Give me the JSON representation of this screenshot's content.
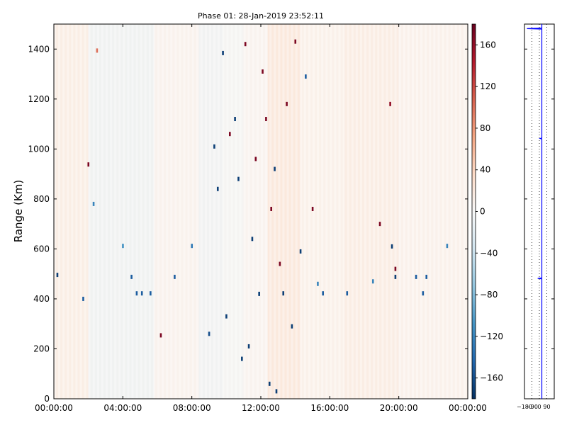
{
  "chart_data": [
    {
      "type": "heatmap",
      "title": "Phase 01: 28-Jan-2019 23:52:11",
      "xlabel": "",
      "ylabel": "Range (Km)",
      "x_range": [
        "00:00:00",
        "00:00:00"
      ],
      "xlim_hours": [
        0,
        24
      ],
      "ylim": [
        0,
        1500
      ],
      "x_ticks": [
        "00:00:00",
        "04:00:00",
        "08:00:00",
        "12:00:00",
        "16:00:00",
        "20:00:00",
        "00:00:00"
      ],
      "y_ticks": [
        "0",
        "200",
        "400",
        "600",
        "800",
        "1000",
        "1200",
        "1400"
      ],
      "colormap": "RdBu_r",
      "background_color": "#fbf3ee",
      "colorbar": {
        "range": [
          -180,
          180
        ],
        "ticks": [
          "−160",
          "−120",
          "−80",
          "−40",
          "0",
          "40",
          "80",
          "120",
          "160"
        ],
        "tick_values": [
          -160,
          -120,
          -80,
          -40,
          0,
          40,
          80,
          120,
          160
        ],
        "colors": [
          "#053061",
          "#2166ac",
          "#4393c3",
          "#92c5de",
          "#d1e5f0",
          "#f7f7f7",
          "#fddbc7",
          "#f4a582",
          "#d6604d",
          "#b2182b",
          "#67001f"
        ]
      },
      "bands": [
        {
          "from_hour": 0.0,
          "to_hour": 2.0,
          "value": 18
        },
        {
          "from_hour": 2.0,
          "to_hour": 5.8,
          "value": -14
        },
        {
          "from_hour": 5.8,
          "to_hour": 8.4,
          "value": 8
        },
        {
          "from_hour": 8.4,
          "to_hour": 9.8,
          "value": -12
        },
        {
          "from_hour": 9.8,
          "to_hour": 11.0,
          "value": -6
        },
        {
          "from_hour": 11.0,
          "to_hour": 12.4,
          "value": 5
        },
        {
          "from_hour": 12.4,
          "to_hour": 14.3,
          "value": 30
        },
        {
          "from_hour": 14.3,
          "to_hour": 16.8,
          "value": 12
        },
        {
          "from_hour": 16.8,
          "to_hour": 20.0,
          "value": 20
        },
        {
          "from_hour": 20.0,
          "to_hour": 24.0,
          "value": 10
        }
      ],
      "points": [
        {
          "hour": 0.2,
          "range": 496,
          "value": -170
        },
        {
          "hour": 1.7,
          "range": 400,
          "value": -150
        },
        {
          "hour": 2.0,
          "range": 938,
          "value": 170
        },
        {
          "hour": 2.3,
          "range": 780,
          "value": -120
        },
        {
          "hour": 2.5,
          "range": 1394,
          "value": 100
        },
        {
          "hour": 4.0,
          "range": 612,
          "value": -110
        },
        {
          "hour": 4.5,
          "range": 488,
          "value": -150
        },
        {
          "hour": 4.8,
          "range": 422,
          "value": -150
        },
        {
          "hour": 5.1,
          "range": 422,
          "value": -150
        },
        {
          "hour": 5.6,
          "range": 422,
          "value": -150
        },
        {
          "hour": 6.2,
          "range": 254,
          "value": 170
        },
        {
          "hour": 7.0,
          "range": 488,
          "value": -150
        },
        {
          "hour": 8.0,
          "range": 612,
          "value": -130
        },
        {
          "hour": 9.0,
          "range": 260,
          "value": -160
        },
        {
          "hour": 9.3,
          "range": 1010,
          "value": -170
        },
        {
          "hour": 9.5,
          "range": 840,
          "value": -170
        },
        {
          "hour": 9.8,
          "range": 1384,
          "value": -170
        },
        {
          "hour": 10.0,
          "range": 330,
          "value": -170
        },
        {
          "hour": 10.2,
          "range": 1060,
          "value": 170
        },
        {
          "hour": 10.5,
          "range": 1120,
          "value": -170
        },
        {
          "hour": 10.7,
          "range": 880,
          "value": -170
        },
        {
          "hour": 10.9,
          "range": 160,
          "value": -170
        },
        {
          "hour": 11.1,
          "range": 1420,
          "value": 170
        },
        {
          "hour": 11.3,
          "range": 210,
          "value": -170
        },
        {
          "hour": 11.5,
          "range": 640,
          "value": -170
        },
        {
          "hour": 11.7,
          "range": 960,
          "value": 170
        },
        {
          "hour": 11.9,
          "range": 420,
          "value": -170
        },
        {
          "hour": 12.1,
          "range": 1310,
          "value": 170
        },
        {
          "hour": 12.3,
          "range": 1120,
          "value": 170
        },
        {
          "hour": 12.5,
          "range": 60,
          "value": -170
        },
        {
          "hour": 12.6,
          "range": 760,
          "value": 170
        },
        {
          "hour": 12.8,
          "range": 920,
          "value": -170
        },
        {
          "hour": 12.9,
          "range": 30,
          "value": -170
        },
        {
          "hour": 13.1,
          "range": 540,
          "value": 170
        },
        {
          "hour": 13.3,
          "range": 422,
          "value": -170
        },
        {
          "hour": 13.5,
          "range": 1180,
          "value": 170
        },
        {
          "hour": 13.8,
          "range": 290,
          "value": -170
        },
        {
          "hour": 14.0,
          "range": 1430,
          "value": 170
        },
        {
          "hour": 14.3,
          "range": 590,
          "value": -170
        },
        {
          "hour": 14.6,
          "range": 1290,
          "value": -150
        },
        {
          "hour": 15.0,
          "range": 760,
          "value": 170
        },
        {
          "hour": 15.3,
          "range": 460,
          "value": -120
        },
        {
          "hour": 15.6,
          "range": 422,
          "value": -150
        },
        {
          "hour": 17.0,
          "range": 422,
          "value": -150
        },
        {
          "hour": 18.5,
          "range": 470,
          "value": -120
        },
        {
          "hour": 18.9,
          "range": 700,
          "value": 170
        },
        {
          "hour": 19.5,
          "range": 1180,
          "value": 160
        },
        {
          "hour": 19.6,
          "range": 610,
          "value": -170
        },
        {
          "hour": 19.8,
          "range": 488,
          "value": -170
        },
        {
          "hour": 19.8,
          "range": 520,
          "value": 170
        },
        {
          "hour": 21.0,
          "range": 488,
          "value": -150
        },
        {
          "hour": 21.4,
          "range": 422,
          "value": -150
        },
        {
          "hour": 21.6,
          "range": 488,
          "value": -150
        },
        {
          "hour": 22.8,
          "range": 612,
          "value": -120
        }
      ]
    },
    {
      "type": "line",
      "title": "",
      "xlabel": "",
      "ylabel": "",
      "xlim": [
        -180,
        180
      ],
      "ylim": [
        0,
        1500
      ],
      "x_ticks": [
        "−180",
        "−90",
        "0",
        "90"
      ],
      "x_tick_values": [
        -180,
        -90,
        0,
        90
      ],
      "line_color": "#0000ff",
      "profile": [
        {
          "range": 0,
          "value": 30
        },
        {
          "range": 480,
          "value": 30
        },
        {
          "range": 482,
          "value": -20
        },
        {
          "range": 484,
          "value": 30
        },
        {
          "range": 1040,
          "value": 30
        },
        {
          "range": 1042,
          "value": 10
        },
        {
          "range": 1044,
          "value": 30
        },
        {
          "range": 1480,
          "value": 30
        },
        {
          "range": 1482,
          "value": -150
        },
        {
          "range": 1484,
          "value": 30
        },
        {
          "range": 1500,
          "value": 30
        }
      ]
    }
  ]
}
